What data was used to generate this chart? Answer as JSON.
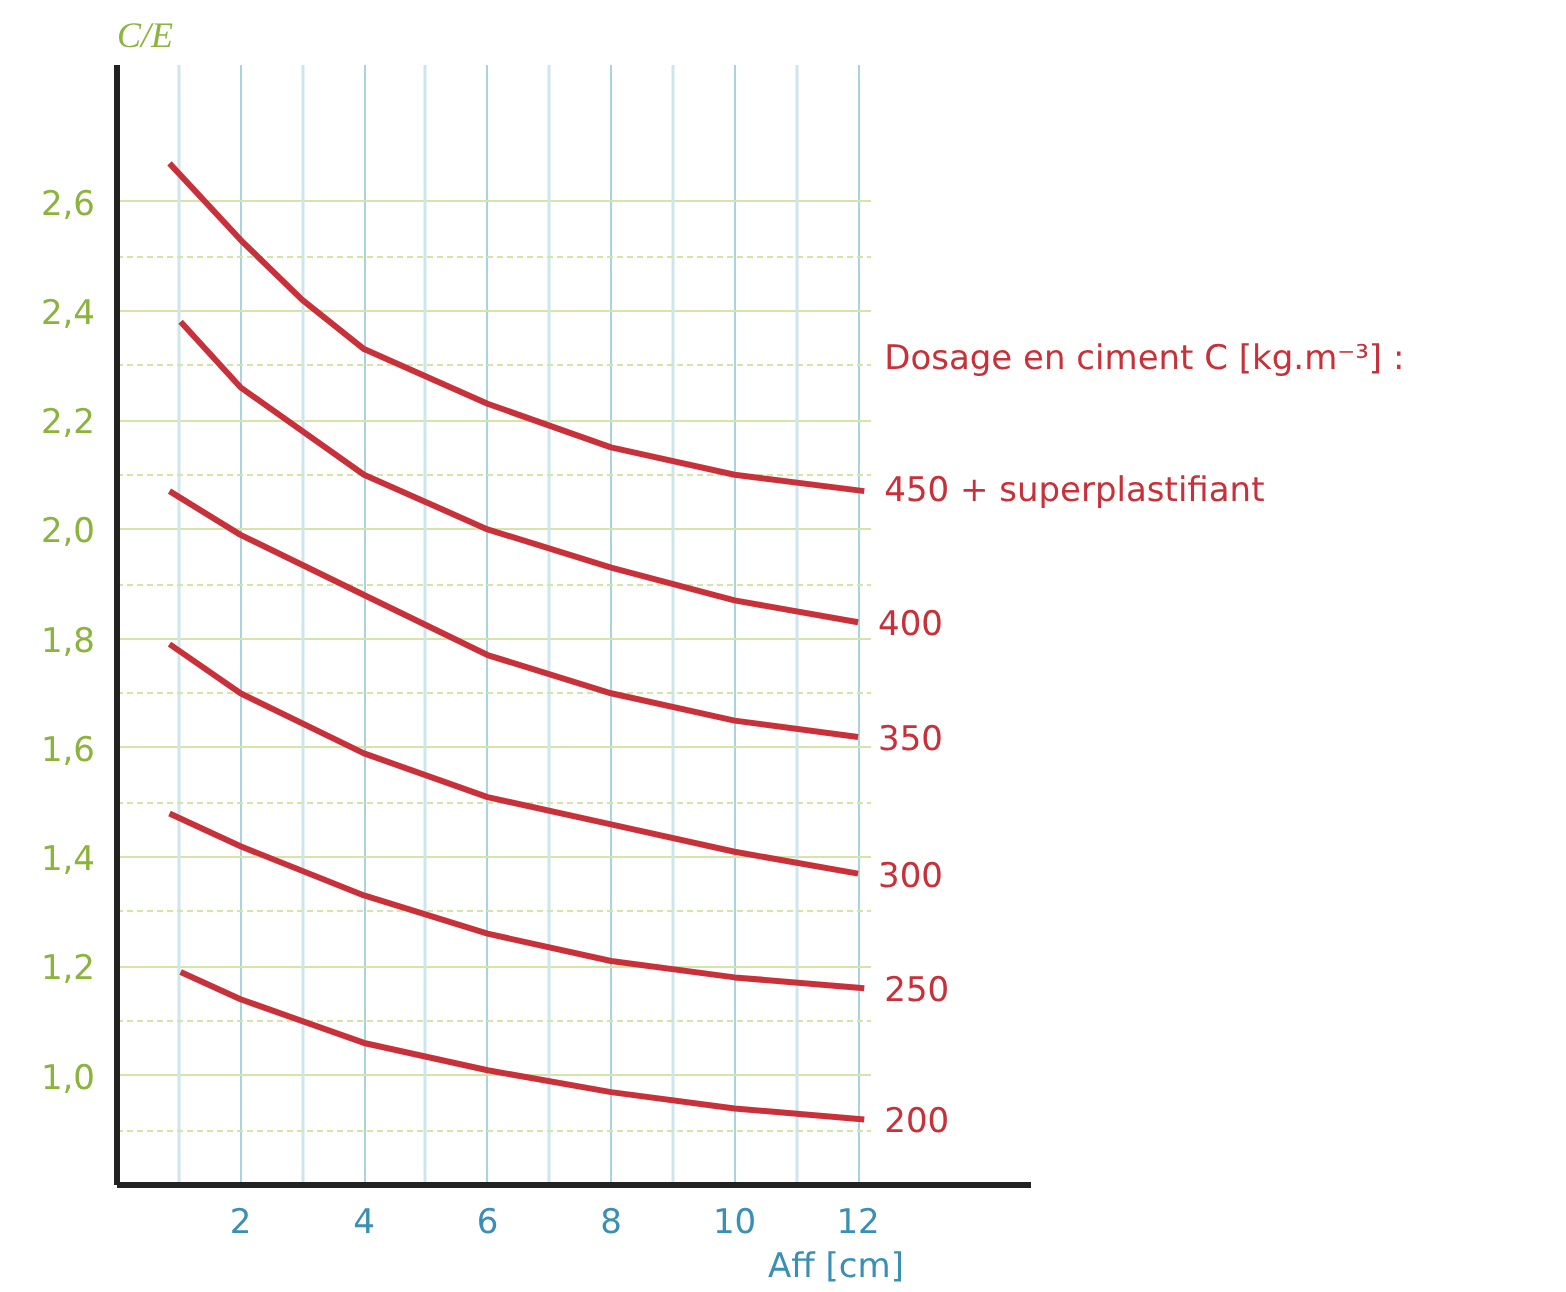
{
  "chart_data": {
    "type": "line",
    "ylabel": "C/E",
    "xlabel": "Aff [cm]",
    "legend_title": "Dosage en ciment C [kg.m⁻³] :",
    "xlim": [
      0,
      14.8
    ],
    "ylim": [
      0.8,
      2.85
    ],
    "xticks": [
      {
        "value": 1,
        "label": null
      },
      2,
      {
        "value": 3,
        "label": null
      },
      4,
      {
        "value": 5,
        "label": null
      },
      6,
      {
        "value": 7,
        "label": null
      },
      8,
      {
        "value": 9,
        "label": null
      },
      10,
      {
        "value": 11,
        "label": null
      },
      12
    ],
    "yticks": [
      {
        "value": 0.9,
        "label": null
      },
      {
        "value": 1.0,
        "label": "1,0"
      },
      {
        "value": 1.1,
        "label": null
      },
      {
        "value": 1.2,
        "label": "1,2"
      },
      {
        "value": 1.3,
        "label": null
      },
      {
        "value": 1.4,
        "label": "1,4"
      },
      {
        "value": 1.5,
        "label": null
      },
      {
        "value": 1.6,
        "label": "1,6"
      },
      {
        "value": 1.7,
        "label": null
      },
      {
        "value": 1.8,
        "label": "1,8"
      },
      {
        "value": 1.9,
        "label": null
      },
      {
        "value": 2.0,
        "label": "2,0"
      },
      {
        "value": 2.1,
        "label": null
      },
      {
        "value": 2.2,
        "label": "2,2"
      },
      {
        "value": 2.3,
        "label": null
      },
      {
        "value": 2.4,
        "label": "2,4"
      },
      {
        "value": 2.5,
        "label": null
      },
      {
        "value": 2.6,
        "label": "2,6"
      }
    ],
    "grid": true,
    "legend": "right",
    "marker": "none",
    "line_style": "solid",
    "series": [
      {
        "name": "450 + superplastifiant",
        "color": "#c8303a",
        "x": [
          0.85,
          2,
          3,
          4,
          6,
          8,
          10,
          12.1
        ],
        "values": [
          2.67,
          2.53,
          2.42,
          2.33,
          2.23,
          2.15,
          2.1,
          2.07
        ]
      },
      {
        "name": "400",
        "color": "#c8303a",
        "x": [
          1.03,
          2,
          4,
          6,
          8,
          10,
          12
        ],
        "values": [
          2.38,
          2.26,
          2.1,
          2.0,
          1.93,
          1.87,
          1.83
        ]
      },
      {
        "name": "350",
        "color": "#c8303a",
        "x": [
          0.85,
          2,
          4,
          6,
          8,
          10,
          12
        ],
        "values": [
          2.07,
          1.99,
          1.88,
          1.77,
          1.7,
          1.65,
          1.62
        ]
      },
      {
        "name": "300",
        "color": "#c8303a",
        "x": [
          0.85,
          2,
          4,
          6,
          8,
          10,
          12
        ],
        "values": [
          1.79,
          1.7,
          1.59,
          1.51,
          1.46,
          1.41,
          1.37
        ]
      },
      {
        "name": "250",
        "color": "#c8303a",
        "x": [
          0.85,
          2,
          4,
          6,
          8,
          10,
          12.1
        ],
        "values": [
          1.48,
          1.42,
          1.33,
          1.26,
          1.21,
          1.18,
          1.16
        ]
      },
      {
        "name": "200",
        "color": "#c8303a",
        "x": [
          1.03,
          2,
          4,
          6,
          8,
          10,
          12.1
        ],
        "values": [
          1.19,
          1.14,
          1.06,
          1.01,
          0.97,
          0.94,
          0.92
        ]
      }
    ]
  }
}
